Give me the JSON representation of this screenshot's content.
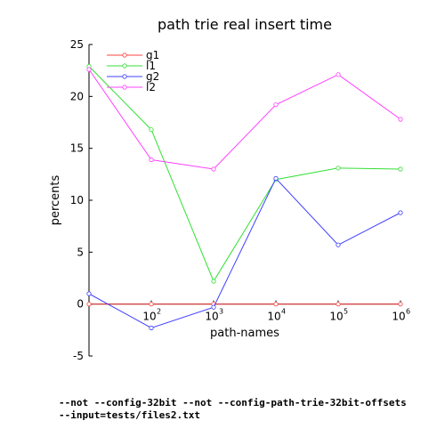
{
  "chart_data": {
    "type": "line",
    "title": "path trie real insert time",
    "xlabel": "path-names",
    "ylabel": "percents",
    "x": [
      10,
      100,
      1000,
      10000,
      100000,
      1000000
    ],
    "x_scale": "log",
    "x_tick_labels": [
      {
        "base": "10",
        "exp": "2"
      },
      {
        "base": "10",
        "exp": "3"
      },
      {
        "base": "10",
        "exp": "4"
      },
      {
        "base": "10",
        "exp": "5"
      },
      {
        "base": "10",
        "exp": "6"
      }
    ],
    "x_tick_values": [
      100,
      1000,
      10000,
      100000,
      1000000
    ],
    "ylim": [
      -5,
      25
    ],
    "y_ticks": [
      -5,
      0,
      5,
      10,
      15,
      20,
      25
    ],
    "grid": false,
    "legend": "top-left",
    "series": [
      {
        "name": "g1",
        "color": "#ff4040",
        "values": [
          0,
          0,
          0,
          0,
          0,
          0
        ]
      },
      {
        "name": "l1",
        "color": "#33e033",
        "values": [
          22.9,
          16.8,
          2.2,
          12.0,
          13.1,
          13.0
        ]
      },
      {
        "name": "g2",
        "color": "#4040ff",
        "values": [
          1.0,
          -2.3,
          -0.3,
          12.1,
          5.7,
          8.8
        ]
      },
      {
        "name": "l2",
        "color": "#ff40ff",
        "values": [
          22.6,
          13.9,
          13.0,
          19.2,
          22.1,
          17.8
        ]
      }
    ]
  },
  "footer": {
    "line1": "--not --config-32bit --not --config-path-trie-32bit-offsets",
    "line2": "--input=tests/files2.txt"
  }
}
